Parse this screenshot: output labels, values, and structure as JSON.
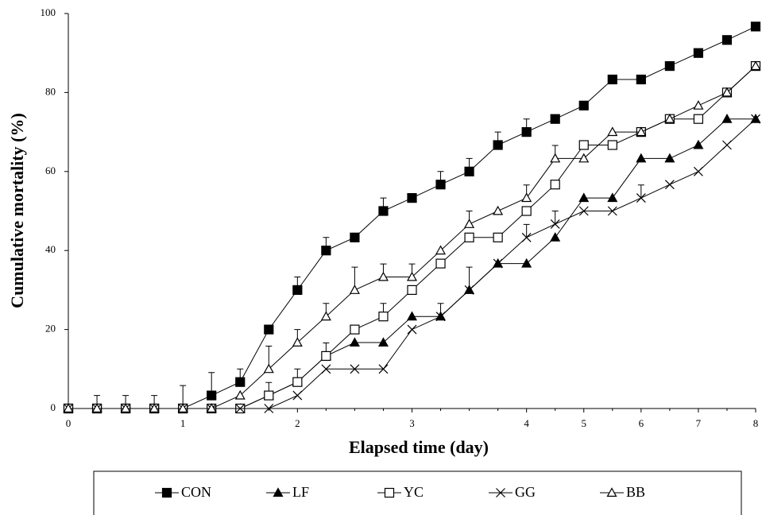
{
  "chart_data": {
    "type": "line",
    "x_label": "Elapsed time (day)",
    "y_label": "Cumulative mortality (%)",
    "categories": [
      "0",
      null,
      null,
      null,
      "1",
      null,
      null,
      null,
      "2",
      null,
      null,
      null,
      "3",
      null,
      null,
      null,
      "4",
      null,
      "5",
      null,
      "6",
      null,
      "7",
      null,
      "8"
    ],
    "ylim": [
      0,
      100
    ],
    "yticks": [
      0,
      20,
      40,
      60,
      80,
      100
    ],
    "series": [
      {
        "name": "CON",
        "color": "#000000",
        "marker": "square-filled",
        "values": [
          0,
          0,
          0,
          0,
          0,
          3.3,
          6.7,
          20,
          30,
          40,
          43.3,
          50,
          53.3,
          56.7,
          60,
          66.7,
          70,
          73.3,
          76.7,
          83.3,
          83.3,
          86.7,
          90,
          93.3,
          96.7
        ],
        "errors": [
          null,
          3.3,
          3.3,
          3.3,
          5.8,
          5.8,
          3.3,
          null,
          3.3,
          3.3,
          null,
          3.3,
          null,
          3.3,
          3.3,
          3.3,
          3.3,
          null,
          null,
          null,
          null,
          null,
          null,
          null,
          null
        ]
      },
      {
        "name": "LF",
        "color": "#000000",
        "marker": "triangle-filled",
        "values": [
          0,
          0,
          0,
          0,
          0,
          0,
          0,
          3.3,
          6.7,
          13.3,
          16.7,
          16.7,
          23.3,
          23.3,
          30,
          36.7,
          36.7,
          43.3,
          53.3,
          53.3,
          63.3,
          63.3,
          66.7,
          73.3,
          73.3
        ],
        "errors": [
          null,
          null,
          null,
          null,
          null,
          null,
          null,
          null,
          3.3,
          null,
          null,
          null,
          null,
          3.3,
          5.8,
          null,
          null,
          null,
          null,
          null,
          null,
          null,
          null,
          null,
          null
        ]
      },
      {
        "name": "YC",
        "color": "#000000",
        "marker": "square-open",
        "values": [
          0,
          0,
          0,
          0,
          0,
          0,
          0,
          3.3,
          6.7,
          13.3,
          20,
          23.3,
          30,
          36.7,
          43.3,
          43.3,
          50,
          56.7,
          66.7,
          66.7,
          70,
          73.3,
          73.3,
          80,
          86.7
        ],
        "errors": [
          null,
          null,
          null,
          null,
          null,
          null,
          null,
          3.3,
          null,
          3.3,
          null,
          3.3,
          null,
          null,
          null,
          null,
          null,
          null,
          null,
          null,
          null,
          null,
          null,
          null,
          null
        ]
      },
      {
        "name": "GG",
        "color": "#000000",
        "marker": "cross",
        "values": [
          0,
          0,
          0,
          0,
          0,
          0,
          0,
          0,
          3.3,
          10,
          10,
          10,
          20,
          23.3,
          30,
          36.7,
          43.3,
          46.7,
          50,
          50,
          53.3,
          56.7,
          60,
          66.7,
          73.3
        ],
        "errors": [
          null,
          null,
          null,
          null,
          null,
          null,
          null,
          null,
          null,
          null,
          null,
          null,
          null,
          null,
          null,
          null,
          3.3,
          3.3,
          null,
          null,
          3.3,
          null,
          null,
          null,
          null
        ]
      },
      {
        "name": "BB",
        "color": "#000000",
        "marker": "triangle-open",
        "values": [
          0,
          0,
          0,
          0,
          0,
          0,
          3.3,
          10,
          16.7,
          23.3,
          30,
          33.3,
          33.3,
          40,
          46.7,
          50,
          53.3,
          63.3,
          63.3,
          70,
          70,
          73.3,
          76.7,
          80,
          86.7
        ],
        "errors": [
          null,
          null,
          null,
          null,
          null,
          null,
          null,
          5.8,
          3.3,
          3.3,
          5.8,
          3.3,
          3.3,
          null,
          3.3,
          null,
          3.3,
          3.3,
          null,
          null,
          null,
          null,
          null,
          null,
          null
        ]
      }
    ]
  }
}
